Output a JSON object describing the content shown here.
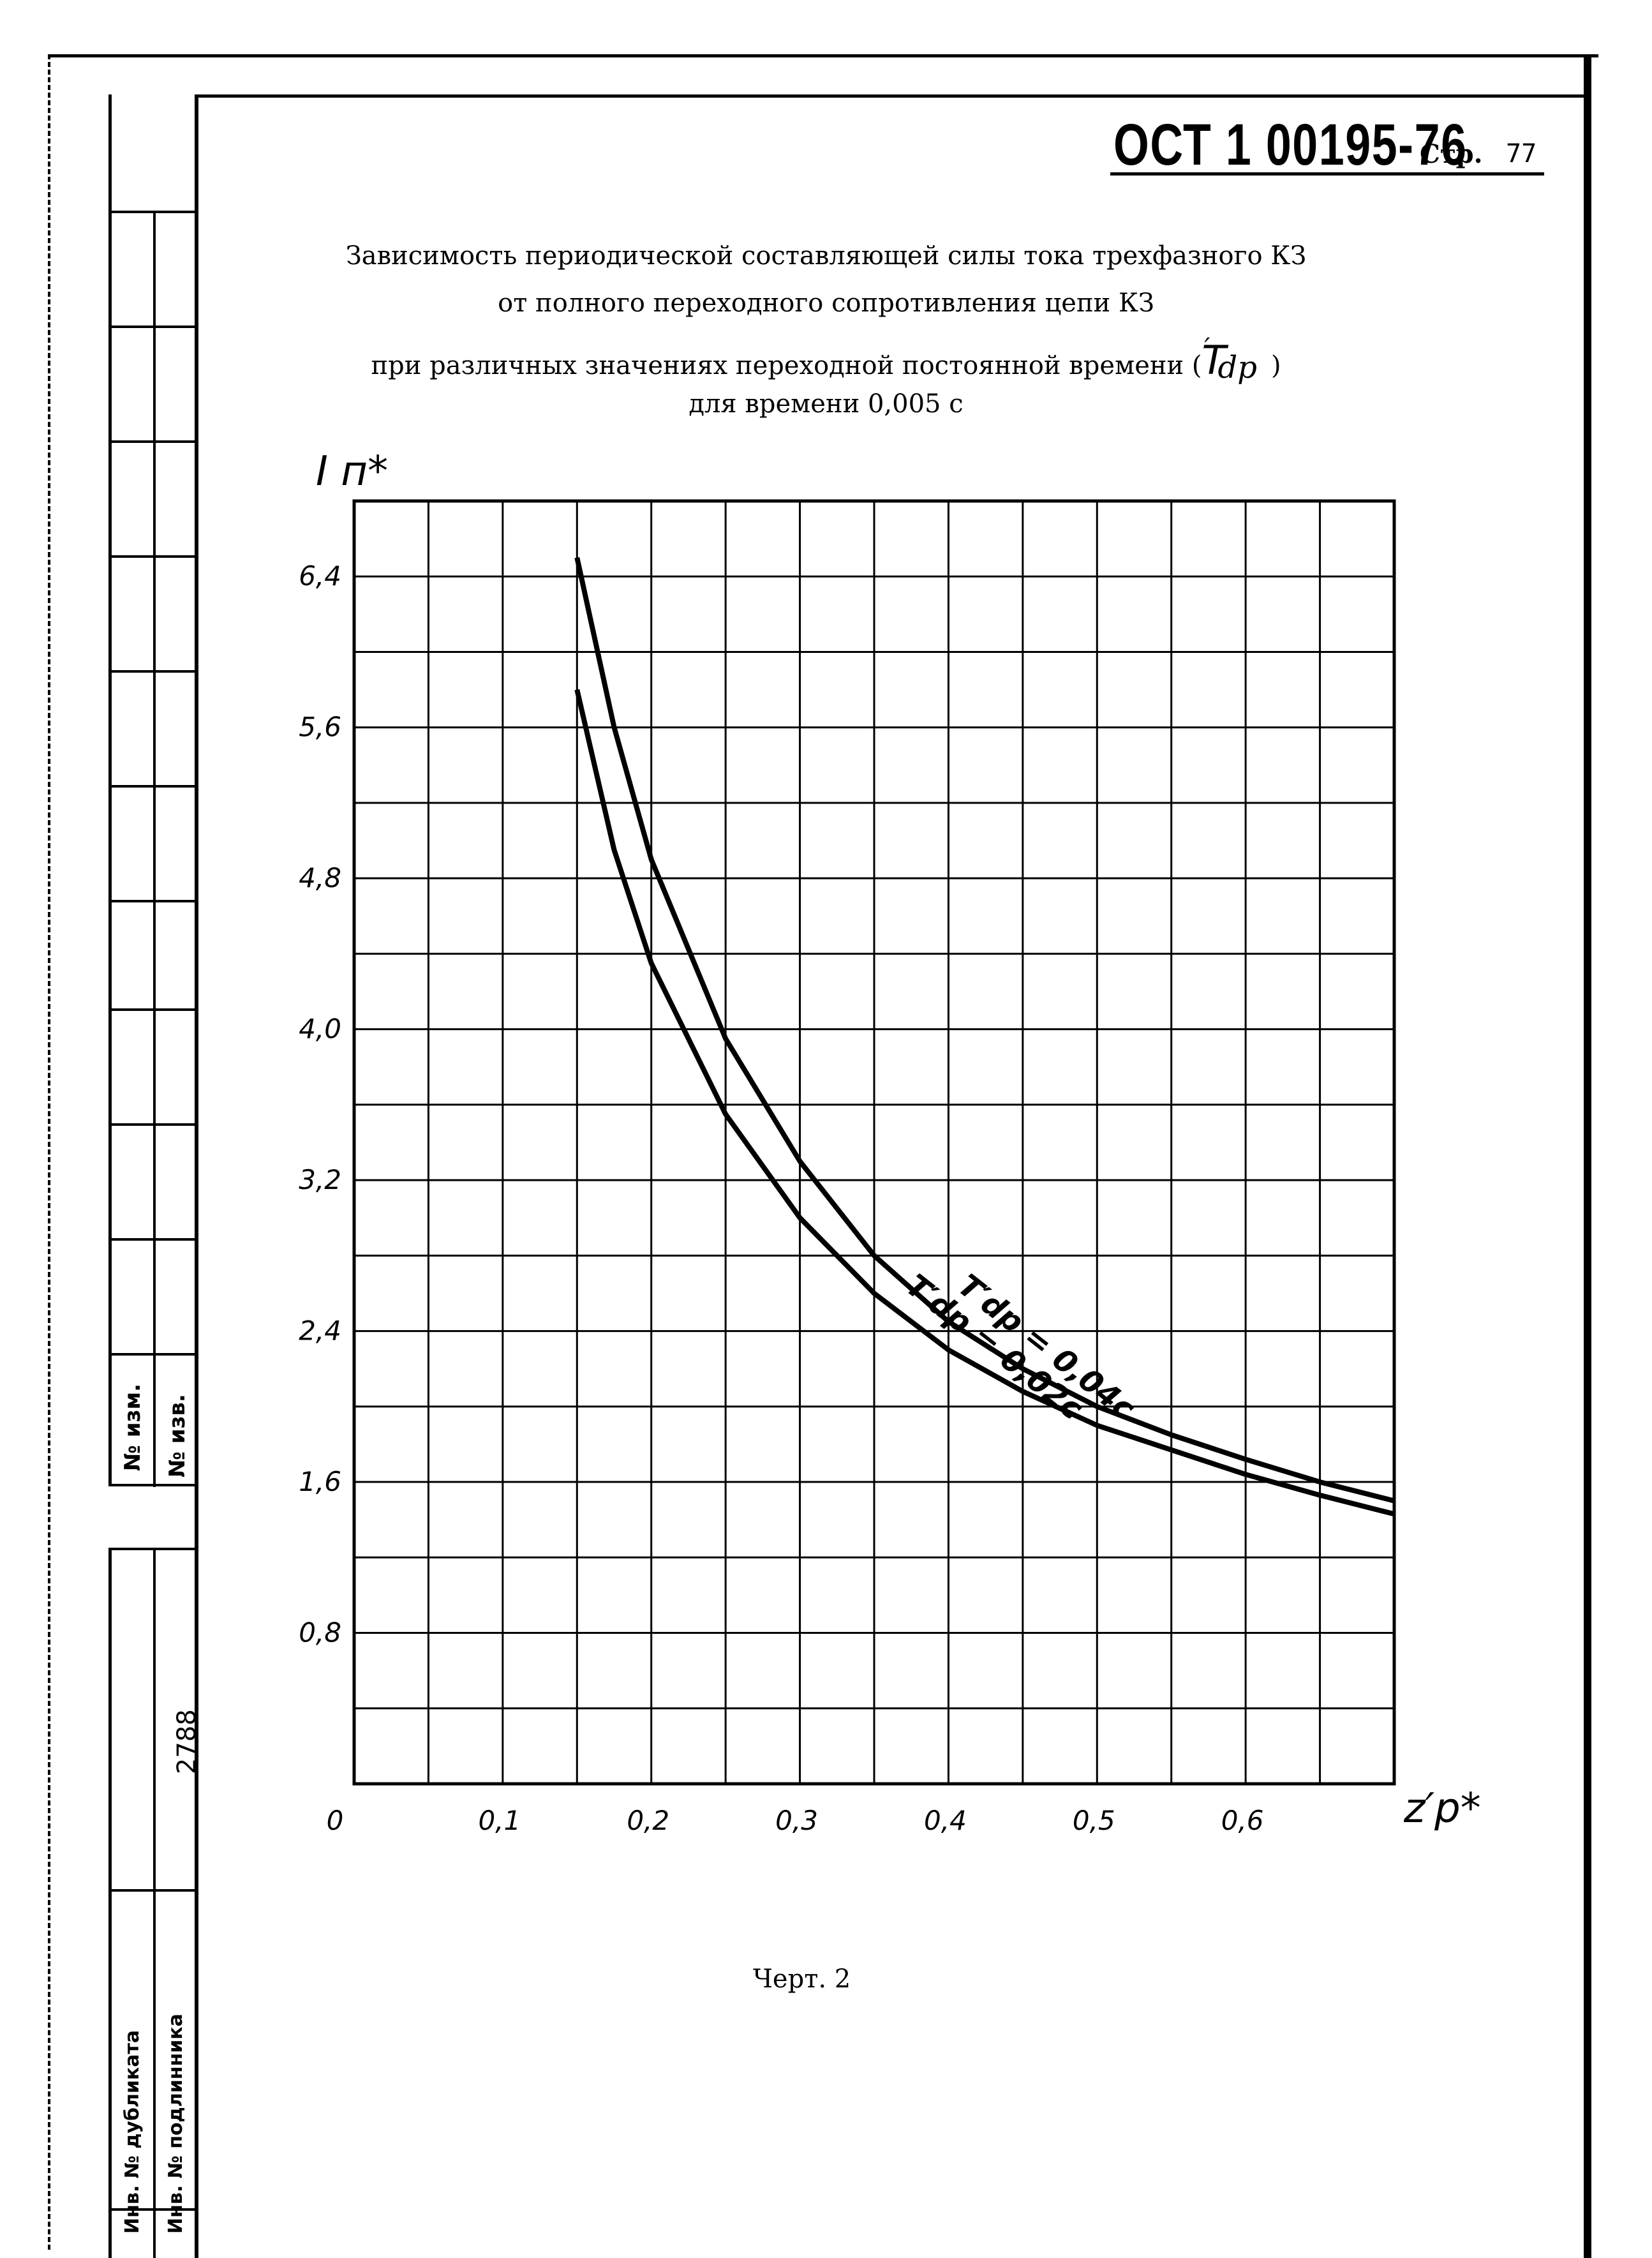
{
  "header": {
    "document_code": "ОСТ 1 00195-76",
    "page_label": "Стр.",
    "page_number": "77"
  },
  "title": {
    "line1": "Зависимость периодической составляющей силы тока трехфазного КЗ",
    "line2": "от полного переходного сопротивления цепи КЗ",
    "line3_prefix": "при различных значениях переходной постоянной времени (",
    "line3_symbol": "T",
    "line3_sup": "′",
    "line3_sub": "dp",
    "line3_suffix": ")",
    "line4": "для времени 0,005 с"
  },
  "caption": "Черт. 2",
  "margin": {
    "change_no": "№ изм.",
    "notice_no": "№ изв.",
    "inv_number": "2788",
    "duplicate_label": "Инв. № дубликата",
    "original_label": "Инв. № подлинника"
  },
  "chart_data": {
    "type": "line",
    "ylabel": "I п*",
    "xlabel": "z′p*",
    "xlim": [
      0,
      0.7
    ],
    "ylim": [
      0,
      6.8
    ],
    "x_ticks": [
      0,
      0.1,
      0.2,
      0.3,
      0.4,
      0.5,
      0.6
    ],
    "x_tick_labels": [
      "0",
      "0,1",
      "0,2",
      "0,3",
      "0,4",
      "0,5",
      "0,6"
    ],
    "y_ticks": [
      0.8,
      1.6,
      2.4,
      3.2,
      4.0,
      4.8,
      5.6,
      6.4
    ],
    "y_tick_labels": [
      "0,8",
      "1,6",
      "2,4",
      "3,2",
      "4,0",
      "4,8",
      "5,6",
      "6,4"
    ],
    "grid": true,
    "series": [
      {
        "name": "T′dp = 0,04c",
        "x": [
          0.15,
          0.175,
          0.2,
          0.25,
          0.3,
          0.35,
          0.4,
          0.45,
          0.5,
          0.55,
          0.6,
          0.65,
          0.7
        ],
        "y": [
          6.5,
          5.6,
          4.9,
          3.95,
          3.3,
          2.8,
          2.45,
          2.2,
          2.0,
          1.85,
          1.72,
          1.6,
          1.5
        ]
      },
      {
        "name": "T′dp = 0,02c",
        "x": [
          0.15,
          0.175,
          0.2,
          0.25,
          0.3,
          0.35,
          0.4,
          0.45,
          0.5,
          0.55,
          0.6,
          0.65,
          0.7
        ],
        "y": [
          5.8,
          4.95,
          4.35,
          3.55,
          3.0,
          2.6,
          2.3,
          2.08,
          1.9,
          1.77,
          1.64,
          1.53,
          1.43
        ]
      }
    ]
  }
}
